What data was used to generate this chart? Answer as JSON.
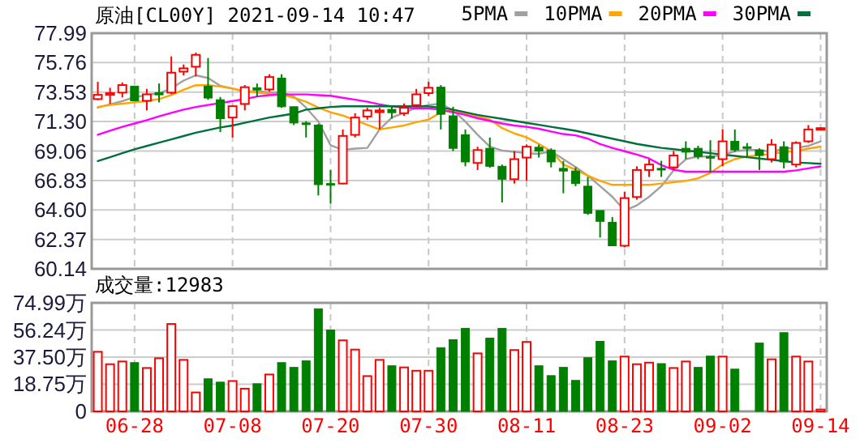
{
  "chart_data": [
    {
      "type": "candlestick",
      "title": "原油[CL00Y] 2021-09-14 10:47",
      "legend": "top right",
      "grid": true,
      "tick_labels": "y",
      "categories": [
        null,
        null,
        null,
        null,
        null,
        null,
        null,
        null,
        null,
        null,
        null,
        null,
        null,
        null,
        null,
        null,
        null,
        null,
        null,
        null,
        null,
        null,
        null,
        null,
        null,
        null,
        null,
        null,
        null,
        null,
        null,
        null,
        null,
        null,
        null,
        null,
        null,
        null,
        null,
        null,
        null,
        null,
        null,
        null,
        null,
        null,
        null,
        null,
        null,
        null,
        null,
        null,
        null,
        null,
        null,
        null,
        null,
        null,
        null,
        null
      ],
      "ylim": [
        60.14,
        77.99
      ],
      "yticks": [
        60.14,
        62.37,
        {
          "value": 64.6,
          "label": "64.60"
        },
        66.83,
        69.06,
        {
          "value": 71.3,
          "label": "71.30"
        },
        73.53,
        75.76,
        77.99
      ],
      "ohlc": [
        [
          73.0,
          74.31,
          72.91,
          73.32
        ],
        [
          73.32,
          73.86,
          72.63,
          73.45
        ],
        [
          73.49,
          74.26,
          73.12,
          74.06
        ],
        [
          73.98,
          73.99,
          72.83,
          72.87
        ],
        [
          72.87,
          73.77,
          72.14,
          73.36
        ],
        [
          73.49,
          74.18,
          72.75,
          73.32
        ],
        [
          73.49,
          76.23,
          73.37,
          75.0
        ],
        [
          75.08,
          75.62,
          74.8,
          75.33
        ],
        [
          75.45,
          76.52,
          74.72,
          76.35
        ],
        [
          73.98,
          76.11,
          72.95,
          73.08
        ],
        [
          72.95,
          73.16,
          70.5,
          71.52
        ],
        [
          71.6,
          72.54,
          70.09,
          72.46
        ],
        [
          72.63,
          74.06,
          72.14,
          73.9
        ],
        [
          73.86,
          74.18,
          73.16,
          73.69
        ],
        [
          73.73,
          74.88,
          73.57,
          74.67
        ],
        [
          74.59,
          74.88,
          72.34,
          72.42
        ],
        [
          72.42,
          72.42,
          71.03,
          71.19
        ],
        [
          71.19,
          71.32,
          70.09,
          71.07
        ],
        [
          71.03,
          71.11,
          65.7,
          66.52
        ],
        [
          66.6,
          67.63,
          65.09,
          66.48
        ],
        [
          66.6,
          70.7,
          66.55,
          70.21
        ],
        [
          70.29,
          71.93,
          70.09,
          71.6
        ],
        [
          71.68,
          72.34,
          71.44,
          72.14
        ],
        [
          72.01,
          72.34,
          70.7,
          72.14
        ],
        [
          72.22,
          72.54,
          71.52,
          71.97
        ],
        [
          71.93,
          72.67,
          71.73,
          72.34
        ],
        [
          72.54,
          73.77,
          72.46,
          73.36
        ],
        [
          73.45,
          74.31,
          73.24,
          73.86
        ],
        [
          73.9,
          74.06,
          70.7,
          71.85
        ],
        [
          71.73,
          72.42,
          69.06,
          69.27
        ],
        [
          70.29,
          70.7,
          67.91,
          68.24
        ],
        [
          68.16,
          69.39,
          67.63,
          69.14
        ],
        [
          69.27,
          70.09,
          67.8,
          67.91
        ],
        [
          67.91,
          68.04,
          65.17,
          66.93
        ],
        [
          66.93,
          69.06,
          66.6,
          68.45
        ],
        [
          68.57,
          69.56,
          66.81,
          69.39
        ],
        [
          69.35,
          69.55,
          68.57,
          69.06
        ],
        [
          69.14,
          69.27,
          67.83,
          68.24
        ],
        [
          67.75,
          68.32,
          65.87,
          67.55
        ],
        [
          67.55,
          67.83,
          66.4,
          66.6
        ],
        [
          66.4,
          67.1,
          64.23,
          64.35
        ],
        [
          64.56,
          64.56,
          62.51,
          63.74
        ],
        [
          63.66,
          64.06,
          61.89,
          61.89
        ],
        [
          61.89,
          65.99,
          61.77,
          65.5
        ],
        [
          65.58,
          67.91,
          65.38,
          67.63
        ],
        [
          67.63,
          68.45,
          67.1,
          68.04
        ],
        [
          67.75,
          68.32,
          67.1,
          67.67
        ],
        [
          67.83,
          69.06,
          67.63,
          68.73
        ],
        [
          69.27,
          69.8,
          68.45,
          68.98
        ],
        [
          69.27,
          69.47,
          68.45,
          68.65
        ],
        [
          68.65,
          69.88,
          67.43,
          68.57
        ],
        [
          68.45,
          70.7,
          67.91,
          69.8
        ],
        [
          69.8,
          70.7,
          69.0,
          69.15
        ],
        [
          69.39,
          69.67,
          68.65,
          69.27
        ],
        [
          69.14,
          69.27,
          67.63,
          68.73
        ],
        [
          68.45,
          69.96,
          68.2,
          69.55
        ],
        [
          69.39,
          69.8,
          67.75,
          68.24
        ],
        [
          68.04,
          69.8,
          67.83,
          69.68
        ],
        [
          69.8,
          71.03,
          69.68,
          70.7
        ],
        [
          70.78,
          70.86,
          70.7,
          70.8
        ]
      ],
      "colors": [
        "#ff0000",
        "#ff0000",
        "#ff0000",
        "#008000",
        "#ff0000",
        "#008000",
        "#ff0000",
        "#ff0000",
        "#ff0000",
        "#008000",
        "#008000",
        "#ff0000",
        "#ff0000",
        "#008000",
        "#ff0000",
        "#008000",
        "#008000",
        "#008000",
        "#008000",
        "#008000",
        "#ff0000",
        "#ff0000",
        "#ff0000",
        "#ff0000",
        "#008000",
        "#ff0000",
        "#ff0000",
        "#ff0000",
        "#008000",
        "#008000",
        "#008000",
        "#ff0000",
        "#008000",
        "#008000",
        "#ff0000",
        "#ff0000",
        "#008000",
        "#008000",
        "#008000",
        "#008000",
        "#008000",
        "#008000",
        "#008000",
        "#ff0000",
        "#ff0000",
        "#ff0000",
        "#008000",
        "#ff0000",
        "#008000",
        "#008000",
        "#008000",
        "#ff0000",
        "#008000",
        "#008000",
        "#008000",
        "#ff0000",
        "#008000",
        "#ff0000",
        "#ff0000",
        "#ff0000"
      ],
      "series": [
        {
          "type": "line",
          "name": "5PMA",
          "color": "#a0a0a0",
          "values": [
            72.35,
            72.6,
            72.85,
            73.15,
            73.3,
            73.45,
            73.8,
            74.4,
            74.8,
            74.6,
            74.0,
            73.8,
            73.55,
            73.6,
            73.5,
            73.5,
            73.2,
            72.35,
            71.3,
            69.5,
            69.15,
            69.25,
            69.3,
            70.7,
            71.6,
            71.95,
            72.35,
            72.55,
            72.65,
            72.15,
            71.3,
            70.3,
            69.4,
            69.1,
            69.0,
            68.9,
            68.85,
            69.05,
            68.45,
            67.85,
            67.2,
            66.4,
            65.6,
            64.55,
            64.95,
            65.6,
            66.4,
            67.6,
            68.45,
            68.65,
            68.65,
            68.75,
            69.05,
            69.15,
            69.15,
            69.0,
            69.25,
            69.3,
            69.45,
            69.8
          ]
        },
        {
          "type": "line",
          "name": "10PMA",
          "color": "#ffa500",
          "values": [
            72.4,
            72.55,
            72.65,
            72.75,
            72.85,
            73.0,
            73.3,
            73.7,
            74.05,
            74.05,
            73.95,
            73.8,
            73.6,
            73.5,
            73.4,
            73.35,
            73.1,
            72.8,
            72.35,
            72.0,
            71.75,
            71.4,
            71.05,
            70.7,
            70.85,
            71.0,
            71.25,
            71.45,
            72.0,
            72.15,
            71.9,
            71.7,
            71.45,
            70.8,
            70.4,
            70.1,
            69.6,
            69.05,
            68.05,
            67.65,
            67.2,
            66.8,
            66.5,
            66.5,
            66.5,
            66.5,
            66.6,
            66.7,
            66.8,
            67.0,
            67.4,
            68.05,
            68.45,
            68.65,
            68.75,
            68.85,
            69.0,
            69.05,
            69.25,
            69.4
          ]
        },
        {
          "type": "line",
          "name": "20PMA",
          "color": "#ff00ff",
          "values": [
            70.3,
            70.6,
            70.9,
            71.15,
            71.4,
            71.7,
            71.95,
            72.2,
            72.4,
            72.55,
            72.7,
            72.85,
            73.0,
            73.2,
            73.3,
            73.35,
            73.35,
            73.35,
            73.3,
            73.25,
            73.1,
            72.95,
            72.8,
            72.6,
            72.45,
            72.35,
            72.3,
            72.3,
            72.2,
            72.0,
            71.8,
            71.55,
            71.35,
            71.15,
            71.0,
            70.9,
            70.75,
            70.55,
            70.35,
            70.25,
            70.0,
            69.6,
            69.3,
            69.05,
            68.8,
            68.5,
            68.0,
            67.65,
            67.5,
            67.5,
            67.5,
            67.5,
            67.5,
            67.5,
            67.5,
            67.5,
            67.5,
            67.6,
            67.75,
            67.9
          ]
        },
        {
          "type": "line",
          "name": "30PMA",
          "color": "#00703c",
          "values": [
            68.3,
            68.6,
            68.9,
            69.2,
            69.45,
            69.7,
            69.95,
            70.2,
            70.45,
            70.65,
            70.85,
            71.0,
            71.2,
            71.4,
            71.6,
            71.75,
            71.9,
            72.2,
            72.3,
            72.4,
            72.45,
            72.45,
            72.45,
            72.45,
            72.45,
            72.45,
            72.45,
            72.45,
            72.35,
            72.2,
            72.0,
            71.8,
            71.65,
            71.5,
            71.35,
            71.2,
            71.05,
            70.9,
            70.75,
            70.6,
            70.4,
            70.2,
            70.0,
            69.8,
            69.6,
            69.45,
            69.3,
            69.2,
            69.1,
            69.0,
            68.9,
            68.8,
            68.7,
            68.6,
            68.5,
            68.4,
            68.3,
            68.2,
            68.15,
            68.1
          ]
        }
      ]
    },
    {
      "type": "bar",
      "title": "成交量:12983",
      "grid": true,
      "categories": [
        null,
        null,
        null,
        "06-28",
        null,
        null,
        null,
        null,
        null,
        null,
        null,
        "07-08",
        null,
        null,
        null,
        null,
        null,
        null,
        null,
        "07-20",
        null,
        null,
        null,
        null,
        null,
        null,
        null,
        "07-30",
        null,
        null,
        null,
        null,
        null,
        null,
        null,
        "08-11",
        null,
        null,
        null,
        null,
        null,
        null,
        null,
        "08-23",
        null,
        null,
        null,
        null,
        null,
        null,
        null,
        "09-02",
        null,
        null,
        null,
        null,
        null,
        null,
        null,
        "09-14"
      ],
      "ylim": [
        0,
        74.99
      ],
      "yticks": [
        0,
        {
          "value": 18.75,
          "label": "18.75万"
        },
        {
          "value": 37.5,
          "label": "37.50万"
        },
        {
          "value": 56.24,
          "label": "56.24万"
        },
        {
          "value": 74.99,
          "label": "74.99万"
        }
      ],
      "values": [
        41.2,
        32.6,
        34.5,
        33.7,
        30.0,
        36.7,
        60.4,
        35.6,
        13.1,
        22.5,
        20.2,
        21.0,
        15.7,
        19.1,
        25.5,
        33.7,
        30.4,
        34.9,
        70.9,
        56.2,
        49.1,
        42.7,
        24.4,
        35.6,
        31.5,
        30.4,
        28.1,
        28.1,
        44.0,
        49.5,
        57.4,
        40.1,
        50.6,
        57.4,
        42.4,
        48.0,
        31.5,
        24.7,
        30.4,
        21.4,
        37.1,
        48.4,
        34.9,
        37.9,
        32.6,
        33.7,
        33.0,
        30.0,
        34.5,
        30.4,
        38.2,
        37.9,
        29.2,
        null,
        47.2,
        36.0,
        54.4,
        37.9,
        34.5,
        1.3
      ],
      "colors": [
        "#ff0000",
        "#ff0000",
        "#ff0000",
        "#008000",
        "#ff0000",
        "#ff0000",
        "#ff0000",
        "#ff0000",
        "#ff0000",
        "#008000",
        "#008000",
        "#ff0000",
        "#ff0000",
        "#008000",
        "#ff0000",
        "#008000",
        "#008000",
        "#008000",
        "#008000",
        "#008000",
        "#ff0000",
        "#ff0000",
        "#ff0000",
        "#ff0000",
        "#008000",
        "#ff0000",
        "#ff0000",
        "#ff0000",
        "#008000",
        "#008000",
        "#008000",
        "#ff0000",
        "#008000",
        "#008000",
        "#ff0000",
        "#ff0000",
        "#008000",
        "#008000",
        "#008000",
        "#008000",
        "#008000",
        "#008000",
        "#008000",
        "#ff0000",
        "#ff0000",
        "#ff0000",
        "#008000",
        "#ff0000",
        "#ff0000",
        "#008000",
        "#008000",
        "#ff0000",
        "#008000",
        "#008000",
        "#008000",
        "#ff0000",
        "#008000",
        "#ff0000",
        "#ff0000",
        "#ff0000"
      ]
    }
  ]
}
